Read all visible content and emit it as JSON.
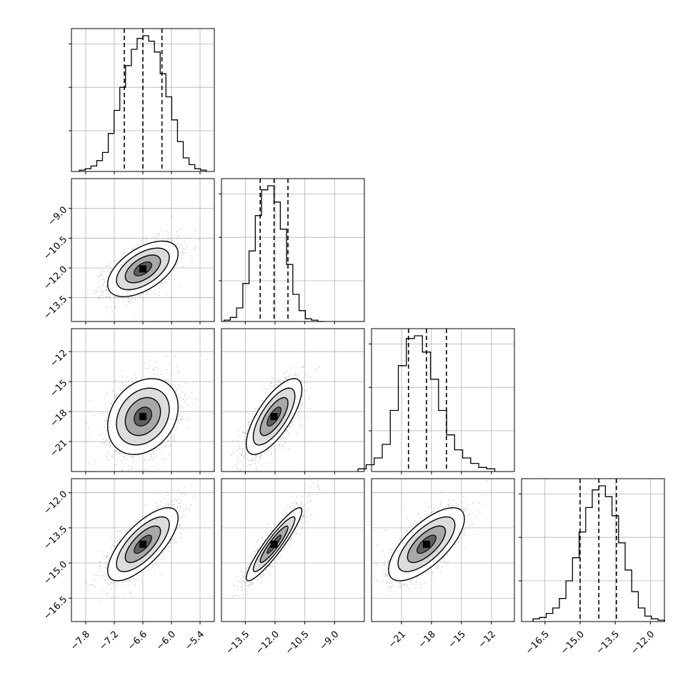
{
  "chart_data": {
    "type": "corner",
    "ndim": 4,
    "params": [
      {
        "range": [
          -8.1,
          -5.1
        ],
        "ticks": [
          -7.8,
          -7.2,
          -6.6,
          -6.0,
          -5.4
        ],
        "tick_labels": [
          "−7.8",
          "−7.2",
          "−6.6",
          "−6.0",
          "−5.4"
        ],
        "quantiles": [
          -6.99,
          -6.6,
          -6.2
        ],
        "mean": -6.6,
        "sd": 0.37
      },
      {
        "range": [
          -14.7,
          -7.5
        ],
        "ticks": [
          -13.5,
          -12.0,
          -10.5,
          -9.0
        ],
        "tick_labels": [
          "−13.5",
          "−12.0",
          "−10.5",
          "−9.0"
        ],
        "quantiles": [
          -12.75,
          -12.05,
          -11.35
        ],
        "mean": -12.05,
        "sd": 0.7
      },
      {
        "range": [
          -24.0,
          -9.7
        ],
        "ticks": [
          -21,
          -18,
          -15,
          -12
        ],
        "tick_labels": [
          "−21",
          "−18",
          "−15",
          "−12"
        ],
        "quantiles": [
          -20.3,
          -18.5,
          -16.5
        ],
        "mean": -18.5,
        "sd": 1.9
      },
      {
        "range": [
          -17.5,
          -11.4
        ],
        "ticks": [
          -16.5,
          -15.0,
          -13.5,
          -12.0
        ],
        "tick_labels": [
          "−16.5",
          "−15.0",
          "−13.5",
          "−12.0"
        ],
        "quantiles": [
          -15.0,
          -14.2,
          -13.45
        ],
        "mean": -14.2,
        "sd": 0.78
      }
    ],
    "hist_counts": [
      [
        0.01,
        0.02,
        0.04,
        0.08,
        0.14,
        0.28,
        0.45,
        0.62,
        0.78,
        0.9,
        0.98,
        1.0,
        0.96,
        0.88,
        0.72,
        0.55,
        0.38,
        0.22,
        0.1,
        0.05,
        0.02,
        0.01
      ],
      [
        0.01,
        0.03,
        0.1,
        0.28,
        0.52,
        0.78,
        0.97,
        1.0,
        0.88,
        0.68,
        0.42,
        0.2,
        0.08,
        0.02,
        0.01,
        0.0
      ],
      [
        0.02,
        0.05,
        0.1,
        0.2,
        0.45,
        0.78,
        0.98,
        1.0,
        0.88,
        0.68,
        0.45,
        0.27,
        0.16,
        0.1,
        0.06,
        0.03,
        0.02
      ],
      [
        0.02,
        0.03,
        0.06,
        0.1,
        0.17,
        0.3,
        0.47,
        0.66,
        0.84,
        0.97,
        1.0,
        0.92,
        0.78,
        0.58,
        0.38,
        0.22,
        0.1,
        0.04,
        0.02,
        0.01
      ]
    ],
    "hist_grid_y": [
      0.3,
      0.62,
      0.94
    ],
    "correlations": [
      [
        1,
        0.55,
        0.25,
        0.72
      ],
      [
        0.55,
        1,
        0.72,
        0.92
      ],
      [
        0.25,
        0.72,
        1,
        0.7
      ],
      [
        0.72,
        0.92,
        0.7,
        1
      ]
    ],
    "contour_levels_sigma": [
      0.5,
      1.0,
      1.5,
      2.0
    ],
    "colors": {
      "line": "#000000",
      "scatter": "#9a9a9a",
      "grid": "#b0b0b0"
    }
  }
}
